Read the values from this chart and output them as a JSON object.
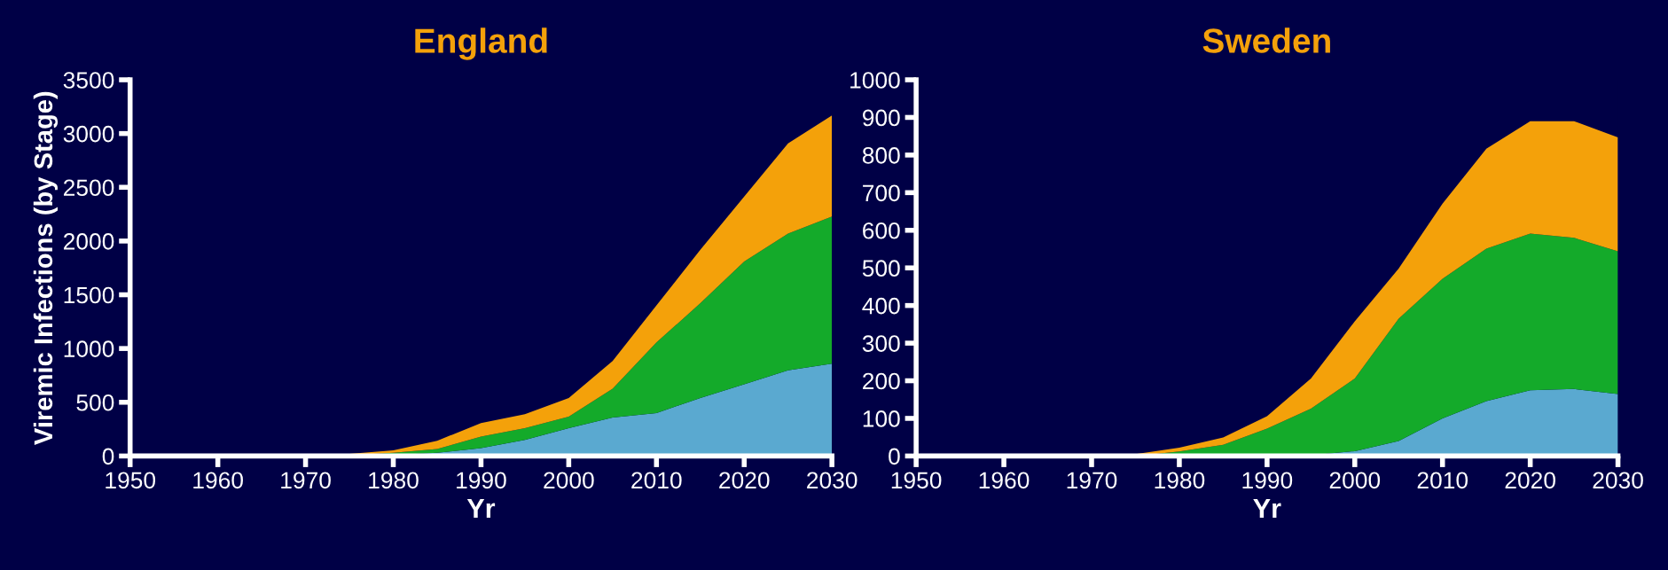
{
  "chart_data": [
    {
      "type": "area",
      "title": "England",
      "xlabel": "Yr",
      "ylabel": "Viremic Infections (by Stage)",
      "stacked": true,
      "x": [
        1950,
        1955,
        1960,
        1965,
        1970,
        1975,
        1980,
        1985,
        1990,
        1995,
        2000,
        2005,
        2010,
        2015,
        2020,
        2025,
        2030
      ],
      "series": [
        {
          "color": "#5aa9d0",
          "values": [
            0,
            0,
            0,
            0,
            0,
            2,
            9,
            30,
            73,
            150,
            258,
            358,
            400,
            539,
            668,
            797,
            858
          ]
        },
        {
          "color": "#14aa2a",
          "values": [
            0,
            0,
            0,
            1,
            3,
            6,
            21,
            35,
            108,
            108,
            108,
            267,
            656,
            883,
            1142,
            1272,
            1370
          ]
        },
        {
          "color": "#f4a10a",
          "values": [
            0,
            0,
            0,
            2,
            5,
            12,
            22,
            77,
            125,
            130,
            173,
            259,
            345,
            496,
            604,
            840,
            940
          ]
        }
      ],
      "xlim": [
        1950,
        2030
      ],
      "xticks": [
        1950,
        1960,
        1970,
        1980,
        1990,
        2000,
        2010,
        2020,
        2030
      ],
      "ylim": [
        0,
        3500
      ],
      "yticks": [
        0,
        500,
        1000,
        1500,
        2000,
        2500,
        3000,
        3500
      ],
      "grid": false,
      "legend": false
    },
    {
      "type": "area",
      "title": "Sweden",
      "xlabel": "Yr",
      "stacked": true,
      "x": [
        1950,
        1955,
        1960,
        1965,
        1970,
        1975,
        1980,
        1985,
        1990,
        1995,
        2000,
        2005,
        2010,
        2015,
        2020,
        2025,
        2030
      ],
      "series": [
        {
          "color": "#5aa9d0",
          "values": [
            0,
            0,
            0,
            0,
            0,
            0,
            0,
            0,
            0,
            2,
            13,
            40,
            100,
            146,
            175,
            178,
            165
          ]
        },
        {
          "color": "#14aa2a",
          "values": [
            0,
            0,
            0,
            0,
            0,
            0,
            12,
            30,
            73,
            124,
            193,
            325,
            371,
            405,
            416,
            402,
            379
          ]
        },
        {
          "color": "#f4a10a",
          "values": [
            0,
            0,
            0,
            0,
            0,
            5,
            10,
            19,
            33,
            80,
            152,
            133,
            200,
            266,
            299,
            310,
            303
          ]
        }
      ],
      "xlim": [
        1950,
        2030
      ],
      "xticks": [
        1950,
        1960,
        1970,
        1980,
        1990,
        2000,
        2010,
        2020,
        2030
      ],
      "ylim": [
        0,
        1000
      ],
      "yticks": [
        0,
        100,
        200,
        300,
        400,
        500,
        600,
        700,
        800,
        900,
        1000
      ],
      "grid": false,
      "legend": false
    }
  ]
}
